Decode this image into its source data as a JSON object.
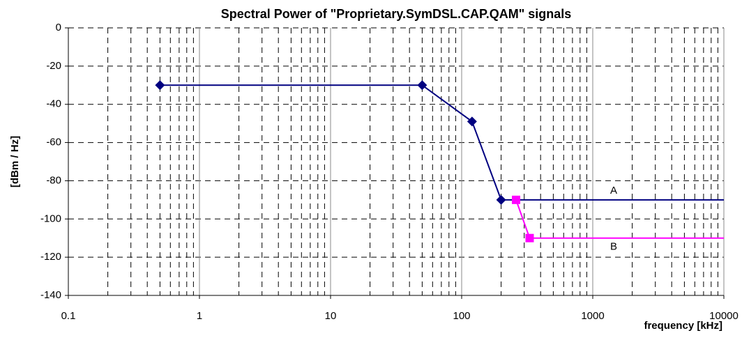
{
  "chart_data": {
    "type": "line",
    "title": "Spectral Power of \"Proprietary.SymDSL.CAP.QAM\" signals",
    "x_label": "frequency [kHz]",
    "y_label": "[dBm / Hz]",
    "log_x": true,
    "grid": true,
    "xlim": [
      0.1,
      10000
    ],
    "xticks": [
      0.1,
      1,
      10,
      100,
      1000,
      10000
    ],
    "ylim": [
      -140,
      0
    ],
    "yticks": [
      0,
      -20,
      -40,
      -60,
      -80,
      -100,
      -120,
      -140
    ],
    "series": [
      {
        "name": "A",
        "color": "#000080",
        "marker": "diamond",
        "x": [
          0.5,
          50,
          120,
          200,
          10000
        ],
        "values": [
          -30,
          -30,
          -49,
          -90,
          -90
        ]
      },
      {
        "name": "B",
        "color": "#ff00ff",
        "marker": "square",
        "x": [
          260,
          330,
          10000
        ],
        "values": [
          -90,
          -110,
          -110
        ]
      }
    ]
  }
}
